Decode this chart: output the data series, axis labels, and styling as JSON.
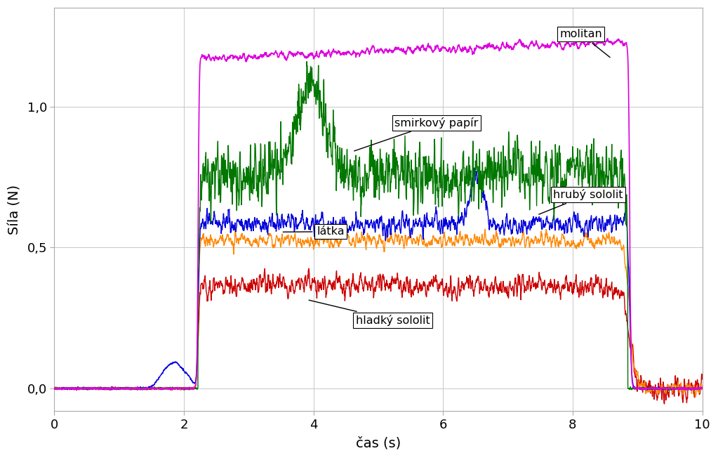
{
  "xlabel": "čas (s)",
  "ylabel": "Síla (N)",
  "xlim": [
    0,
    10
  ],
  "ylim": [
    -0.08,
    1.35
  ],
  "ytick_labels": [
    "0,0",
    "0,5",
    "1,0"
  ],
  "ytick_vals": [
    0.0,
    0.5,
    1.0
  ],
  "xticks": [
    0,
    2,
    4,
    6,
    8,
    10
  ],
  "bg_color": "#ffffff",
  "grid_color": "#c8c8c8",
  "colors": {
    "molitan": "#dd00dd",
    "smirkovy": "#007700",
    "hruby": "#0000dd",
    "latka": "#ff8800",
    "hladky": "#cc0000"
  }
}
